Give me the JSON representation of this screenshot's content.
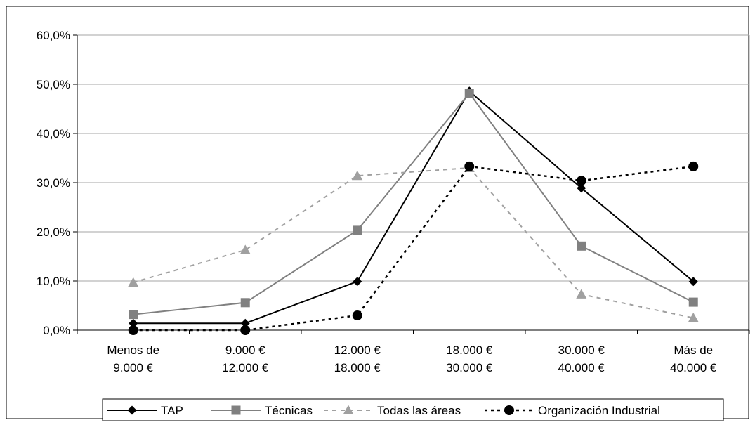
{
  "chart_data": {
    "type": "line",
    "title": "",
    "xlabel": "",
    "ylabel": "",
    "categories": [
      [
        "Menos de",
        "9.000 €"
      ],
      [
        "9.000 €",
        "12.000 €"
      ],
      [
        "12.000 €",
        "18.000 €"
      ],
      [
        "18.000 €",
        "30.000 €"
      ],
      [
        "30.000 €",
        "40.000 €"
      ],
      [
        "Más de",
        "40.000 €"
      ]
    ],
    "ylim": [
      0,
      60
    ],
    "yticks": [
      0,
      10,
      20,
      30,
      40,
      50,
      60
    ],
    "ytick_labels": [
      "0,0%",
      "10,0%",
      "20,0%",
      "30,0%",
      "40,0%",
      "50,0%",
      "60,0%"
    ],
    "grid": true,
    "legend_position": "bottom",
    "series": [
      {
        "name": "TAP",
        "values": [
          1.4,
          1.4,
          9.9,
          48.6,
          28.9,
          9.9
        ],
        "color": "#000000",
        "dash": "solid",
        "marker": "diamond"
      },
      {
        "name": "Técnicas",
        "values": [
          3.2,
          5.6,
          20.3,
          48.2,
          17.1,
          5.7
        ],
        "color": "#808080",
        "dash": "solid",
        "marker": "square"
      },
      {
        "name": "Todas  las áreas",
        "values": [
          9.7,
          16.3,
          31.4,
          33.0,
          7.3,
          2.5
        ],
        "color": "#a0a0a0",
        "dash": "dashed",
        "marker": "triangle"
      },
      {
        "name": "Organización Industrial",
        "values": [
          0.0,
          0.0,
          3.0,
          33.3,
          30.4,
          33.3
        ],
        "color": "#000000",
        "dash": "dotted",
        "marker": "circle"
      }
    ]
  }
}
